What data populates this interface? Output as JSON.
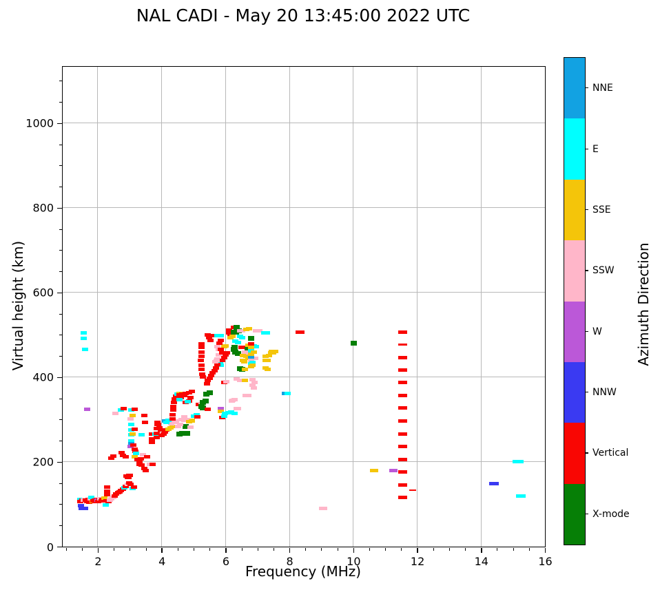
{
  "title": "NAL CADI - May 20 13:45:00 2022 UTC",
  "chart_data": {
    "type": "scatter",
    "title": "NAL CADI - May 20 13:45:00 2022 UTC",
    "xlabel": "Frequency (MHz)",
    "ylabel": "Virtual height (km)",
    "xlim": [
      0.9,
      16
    ],
    "ylim": [
      0,
      1133
    ],
    "x_ticks": [
      2,
      4,
      6,
      8,
      10,
      12,
      14,
      16
    ],
    "y_ticks": [
      0,
      200,
      400,
      600,
      800,
      1000
    ],
    "x_minor_step": 0.5,
    "y_minor_step": 50,
    "grid": true,
    "grid_color": "#b8b8b8",
    "colorbar": {
      "label": "Azimuth Direction",
      "categories": [
        {
          "name": "NNE",
          "color": "#12a2e2"
        },
        {
          "name": "E",
          "color": "#00ffff"
        },
        {
          "name": "SSE",
          "color": "#f4c50a"
        },
        {
          "name": "SSW",
          "color": "#ffb6c9"
        },
        {
          "name": "W",
          "color": "#bb58d8"
        },
        {
          "name": "NNW",
          "color": "#3a3af2"
        },
        {
          "name": "Vertical",
          "color": "#f90603"
        },
        {
          "name": "X-mode",
          "color": "#067f06"
        }
      ]
    },
    "point_note": "points are [freq_MHz, virtual_height_km, direction_index, optional_width_px, optional_height_px]; direction_index maps into colorbar.categories",
    "points": [
      [
        1.45,
        112,
        1
      ],
      [
        1.44,
        106,
        6
      ],
      [
        1.47,
        96,
        5
      ],
      [
        1.5,
        91,
        5
      ],
      [
        1.52,
        110,
        6
      ],
      [
        1.56,
        109,
        3
      ],
      [
        1.6,
        112,
        3
      ],
      [
        1.63,
        110,
        6
      ],
      [
        1.66,
        107,
        6
      ],
      [
        1.7,
        111,
        6
      ],
      [
        1.72,
        105,
        6
      ],
      [
        1.76,
        109,
        6
      ],
      [
        1.78,
        113,
        3
      ],
      [
        1.8,
        116,
        1
      ],
      [
        1.83,
        106,
        2
      ],
      [
        1.86,
        108,
        6
      ],
      [
        1.9,
        110,
        6
      ],
      [
        1.93,
        107,
        6
      ],
      [
        1.96,
        112,
        6
      ],
      [
        1.99,
        109,
        4
      ],
      [
        2.02,
        106,
        6
      ],
      [
        2.05,
        110,
        6
      ],
      [
        2.08,
        113,
        3
      ],
      [
        2.11,
        108,
        6
      ],
      [
        2.14,
        111,
        6
      ],
      [
        2.17,
        109,
        6
      ],
      [
        2.2,
        115,
        2
      ],
      [
        2.24,
        98,
        1
      ],
      [
        2.28,
        108,
        6
      ],
      [
        2.33,
        107,
        6
      ],
      [
        2.38,
        110,
        3
      ],
      [
        2.43,
        113,
        3
      ],
      [
        2.48,
        117,
        3
      ],
      [
        2.3,
        140,
        6
      ],
      [
        2.3,
        131,
        6
      ],
      [
        2.3,
        123,
        6
      ],
      [
        2.53,
        120,
        6
      ],
      [
        2.58,
        124,
        6
      ],
      [
        2.63,
        127,
        6
      ],
      [
        2.68,
        130,
        6
      ],
      [
        2.73,
        133,
        6
      ],
      [
        2.78,
        136,
        6
      ],
      [
        2.83,
        139,
        1
      ],
      [
        2.88,
        143,
        6
      ],
      [
        2.93,
        147,
        3
      ],
      [
        2.98,
        150,
        6
      ],
      [
        3.03,
        147,
        6
      ],
      [
        2.93,
        164,
        6
      ],
      [
        2.98,
        168,
        6
      ],
      [
        3.08,
        137,
        1
      ],
      [
        3.13,
        141,
        6
      ],
      [
        1.6,
        91,
        5
      ],
      [
        1.55,
        505,
        1
      ],
      [
        1.56,
        491,
        1
      ],
      [
        1.6,
        466,
        1
      ],
      [
        1.67,
        325,
        4
      ],
      [
        2.43,
        209,
        6
      ],
      [
        2.49,
        214,
        6
      ],
      [
        2.54,
        314,
        3
      ],
      [
        2.73,
        322,
        1
      ],
      [
        2.8,
        326,
        6
      ],
      [
        2.75,
        222,
        6
      ],
      [
        2.79,
        216,
        6
      ],
      [
        2.88,
        212,
        6
      ],
      [
        3.05,
        322,
        1
      ],
      [
        3.15,
        324,
        6
      ],
      [
        3.08,
        309,
        2
      ],
      [
        3.02,
        301,
        3
      ],
      [
        3.45,
        309,
        6
      ],
      [
        3.47,
        293,
        6
      ],
      [
        3.05,
        288,
        1
      ],
      [
        3.05,
        276,
        1
      ],
      [
        3.05,
        264,
        1
      ],
      [
        3.15,
        277,
        6
      ],
      [
        3.08,
        265,
        2
      ],
      [
        3.38,
        264,
        1
      ],
      [
        3.7,
        265,
        6
      ],
      [
        3.7,
        255,
        6
      ],
      [
        3.7,
        246,
        6
      ],
      [
        3.8,
        266,
        1
      ],
      [
        3.88,
        288,
        6
      ],
      [
        3.92,
        281,
        6
      ],
      [
        3.97,
        275,
        6
      ],
      [
        4.1,
        296,
        0
      ],
      [
        3.05,
        250,
        1
      ],
      [
        3.05,
        243,
        0
      ],
      [
        3.02,
        236,
        4
      ],
      [
        3.12,
        239,
        6
      ],
      [
        3.15,
        230,
        6
      ],
      [
        3.18,
        225,
        6
      ],
      [
        3.2,
        221,
        1
      ],
      [
        3.15,
        212,
        2
      ],
      [
        3.25,
        206,
        6
      ],
      [
        3.3,
        202,
        6
      ],
      [
        3.35,
        207,
        6
      ],
      [
        3.42,
        217,
        3
      ],
      [
        3.55,
        212,
        6
      ],
      [
        3.3,
        195,
        6
      ],
      [
        3.38,
        192,
        6
      ],
      [
        3.62,
        194,
        3
      ],
      [
        3.72,
        194,
        6
      ],
      [
        3.45,
        184,
        6
      ],
      [
        3.5,
        180,
        6
      ],
      [
        2.9,
        166,
        6
      ],
      [
        2.95,
        163,
        6
      ],
      [
        3.0,
        169,
        6
      ],
      [
        3.85,
        258,
        6
      ],
      [
        3.85,
        268,
        6
      ],
      [
        3.85,
        278,
        6
      ],
      [
        3.86,
        288,
        6
      ],
      [
        3.87,
        294,
        6
      ],
      [
        4.0,
        262,
        6
      ],
      [
        4.05,
        266,
        6
      ],
      [
        4.1,
        271,
        6
      ],
      [
        4.15,
        275,
        6
      ],
      [
        4.22,
        277,
        2
      ],
      [
        4.28,
        280,
        2
      ],
      [
        4.35,
        283,
        2
      ],
      [
        4.3,
        290,
        3
      ],
      [
        4.38,
        293,
        3
      ],
      [
        4.45,
        296,
        3
      ],
      [
        4.15,
        294,
        1
      ],
      [
        4.22,
        298,
        1
      ],
      [
        4.35,
        302,
        6
      ],
      [
        4.35,
        312,
        6
      ],
      [
        4.36,
        322,
        6
      ],
      [
        4.37,
        330,
        6
      ],
      [
        4.38,
        340,
        6
      ],
      [
        4.4,
        348,
        6
      ],
      [
        4.45,
        355,
        6
      ],
      [
        4.5,
        360,
        1
      ],
      [
        4.55,
        362,
        2
      ],
      [
        4.62,
        300,
        3
      ],
      [
        4.7,
        306,
        3
      ],
      [
        4.85,
        297,
        2
      ],
      [
        4.95,
        299,
        2
      ],
      [
        4.55,
        265,
        7
      ],
      [
        4.65,
        267,
        7
      ],
      [
        4.8,
        268,
        7
      ],
      [
        4.75,
        283,
        7
      ],
      [
        4.9,
        282,
        3
      ],
      [
        4.75,
        340,
        6
      ],
      [
        4.85,
        344,
        6
      ],
      [
        4.6,
        352,
        6
      ],
      [
        4.7,
        357,
        6
      ],
      [
        4.55,
        347,
        1
      ],
      [
        4.82,
        342,
        1
      ],
      [
        4.58,
        289,
        3
      ],
      [
        4.52,
        284,
        3
      ],
      [
        4.7,
        298,
        3
      ],
      [
        4.8,
        300,
        3
      ],
      [
        4.85,
        295,
        2
      ],
      [
        4.95,
        297,
        2
      ],
      [
        4.55,
        358,
        6
      ],
      [
        4.65,
        360,
        6
      ],
      [
        4.75,
        362,
        6
      ],
      [
        4.85,
        364,
        6
      ],
      [
        4.9,
        352,
        6
      ],
      [
        4.95,
        366,
        6
      ],
      [
        5.02,
        308,
        1
      ],
      [
        5.1,
        312,
        1
      ],
      [
        5.12,
        307,
        6
      ],
      [
        5.15,
        336,
        6
      ],
      [
        5.25,
        337,
        3
      ],
      [
        5.3,
        341,
        7
      ],
      [
        5.25,
        331,
        7
      ],
      [
        5.28,
        327,
        7
      ],
      [
        5.4,
        360,
        7
      ],
      [
        5.5,
        363,
        7
      ],
      [
        5.38,
        343,
        7
      ],
      [
        5.45,
        325,
        6
      ],
      [
        5.85,
        326,
        4
      ],
      [
        5.85,
        320,
        2
      ],
      [
        5.98,
        315,
        1
      ],
      [
        6.08,
        316,
        1
      ],
      [
        6.18,
        317,
        1
      ],
      [
        6.28,
        314,
        1
      ],
      [
        6.2,
        344,
        3
      ],
      [
        6.28,
        347,
        3
      ],
      [
        6.35,
        326,
        3
      ],
      [
        6.22,
        346,
        3
      ],
      [
        6.38,
        326,
        3
      ],
      [
        5.9,
        305,
        6
      ],
      [
        5.95,
        308,
        1
      ],
      [
        5.25,
        460,
        6
      ],
      [
        5.25,
        470,
        6
      ],
      [
        5.25,
        478,
        6
      ],
      [
        5.24,
        450,
        6
      ],
      [
        5.23,
        440,
        6
      ],
      [
        5.25,
        428,
        6
      ],
      [
        5.25,
        418,
        6
      ],
      [
        5.27,
        408,
        6
      ],
      [
        5.3,
        400,
        6
      ],
      [
        5.45,
        500,
        6
      ],
      [
        5.48,
        493,
        6
      ],
      [
        5.52,
        487,
        6
      ],
      [
        5.6,
        499,
        6
      ],
      [
        5.75,
        499,
        1
      ],
      [
        5.85,
        499,
        1
      ],
      [
        5.75,
        472,
        3
      ],
      [
        5.78,
        465,
        3
      ],
      [
        5.78,
        452,
        3
      ],
      [
        5.75,
        443,
        3
      ],
      [
        5.82,
        435,
        1
      ],
      [
        5.85,
        428,
        1
      ],
      [
        5.95,
        473,
        2
      ],
      [
        6.0,
        474,
        2
      ],
      [
        5.42,
        385,
        6
      ],
      [
        5.45,
        392,
        6
      ],
      [
        5.5,
        398,
        6
      ],
      [
        5.55,
        404,
        6
      ],
      [
        5.6,
        410,
        6
      ],
      [
        5.65,
        416,
        6
      ],
      [
        5.7,
        422,
        6
      ],
      [
        5.75,
        430,
        6
      ],
      [
        5.9,
        440,
        6
      ],
      [
        5.95,
        447,
        6
      ],
      [
        6.0,
        453,
        6
      ],
      [
        6.05,
        458,
        6
      ],
      [
        5.9,
        458,
        6
      ],
      [
        5.85,
        465,
        6
      ],
      [
        5.8,
        480,
        6
      ],
      [
        5.85,
        487,
        6
      ],
      [
        5.68,
        436,
        3
      ],
      [
        5.72,
        440,
        3
      ],
      [
        5.95,
        388,
        6
      ],
      [
        6.02,
        390,
        3
      ],
      [
        6.1,
        505,
        6
      ],
      [
        6.12,
        511,
        6
      ],
      [
        6.16,
        500,
        6
      ],
      [
        6.25,
        507,
        7
      ],
      [
        6.33,
        507,
        7
      ],
      [
        6.41,
        509,
        7
      ],
      [
        6.25,
        517,
        6
      ],
      [
        6.35,
        518,
        7
      ],
      [
        6.15,
        494,
        2
      ],
      [
        6.22,
        496,
        2
      ],
      [
        6.45,
        509,
        3
      ],
      [
        6.52,
        510,
        3
      ],
      [
        6.65,
        513,
        2
      ],
      [
        6.73,
        514,
        2
      ],
      [
        6.45,
        497,
        1
      ],
      [
        6.52,
        494,
        1
      ],
      [
        6.95,
        509,
        3
      ],
      [
        7.05,
        509,
        3
      ],
      [
        7.2,
        505,
        1
      ],
      [
        7.3,
        505,
        1
      ],
      [
        6.3,
        485,
        1
      ],
      [
        6.38,
        482,
        1
      ],
      [
        6.25,
        465,
        7
      ],
      [
        6.3,
        460,
        7
      ],
      [
        6.38,
        456,
        7
      ],
      [
        6.28,
        470,
        7
      ],
      [
        6.5,
        470,
        6
      ],
      [
        6.57,
        470,
        6
      ],
      [
        6.7,
        466,
        7
      ],
      [
        6.78,
        465,
        7
      ],
      [
        6.88,
        474,
        1
      ],
      [
        6.95,
        472,
        1
      ],
      [
        6.72,
        475,
        2
      ],
      [
        6.8,
        472,
        2
      ],
      [
        6.6,
        460,
        3
      ],
      [
        6.7,
        458,
        3
      ],
      [
        6.55,
        451,
        2
      ],
      [
        6.65,
        450,
        2
      ],
      [
        6.72,
        444,
        2
      ],
      [
        6.55,
        440,
        2
      ],
      [
        6.58,
        436,
        2
      ],
      [
        6.85,
        444,
        3
      ],
      [
        6.92,
        444,
        3
      ],
      [
        6.45,
        420,
        7
      ],
      [
        6.52,
        418,
        7
      ],
      [
        6.6,
        418,
        2
      ],
      [
        6.8,
        492,
        7
      ],
      [
        6.8,
        479,
        6
      ],
      [
        6.8,
        470,
        2
      ],
      [
        6.8,
        463,
        1
      ],
      [
        6.8,
        455,
        2
      ],
      [
        6.8,
        447,
        0
      ],
      [
        6.8,
        440,
        3
      ],
      [
        6.8,
        432,
        1
      ],
      [
        6.8,
        425,
        2
      ],
      [
        7.25,
        440,
        2
      ],
      [
        7.32,
        440,
        2
      ],
      [
        7.25,
        450,
        2
      ],
      [
        7.35,
        451,
        2
      ],
      [
        7.42,
        457,
        2
      ],
      [
        7.5,
        458,
        2
      ],
      [
        7.25,
        422,
        2
      ],
      [
        7.31,
        418,
        2
      ],
      [
        7.45,
        461,
        2
      ],
      [
        7.55,
        461,
        2
      ],
      [
        6.88,
        460,
        2
      ],
      [
        6.85,
        435,
        1
      ],
      [
        6.85,
        428,
        2
      ],
      [
        6.35,
        396,
        3
      ],
      [
        6.45,
        393,
        3
      ],
      [
        6.6,
        392,
        2
      ],
      [
        6.85,
        395,
        3
      ],
      [
        6.9,
        388,
        3
      ],
      [
        6.85,
        381,
        3
      ],
      [
        6.88,
        375,
        3
      ],
      [
        6.62,
        357,
        3
      ],
      [
        6.72,
        357,
        3
      ],
      [
        7.85,
        362,
        0
      ],
      [
        7.95,
        362,
        1
      ],
      [
        8.33,
        507,
        6,
        13
      ],
      [
        10.02,
        481,
        7
      ],
      [
        10.65,
        179,
        2,
        12
      ],
      [
        11.25,
        179,
        4,
        12
      ],
      [
        9.05,
        91,
        3,
        12
      ],
      [
        14.4,
        149,
        5,
        14
      ],
      [
        15.15,
        201,
        1,
        16
      ],
      [
        15.25,
        120,
        1,
        14
      ],
      [
        11.55,
        507,
        6,
        13
      ],
      [
        11.55,
        477,
        6,
        13,
        3
      ],
      [
        11.55,
        447,
        6,
        13
      ],
      [
        11.55,
        417,
        6,
        13
      ],
      [
        11.55,
        387,
        6,
        13
      ],
      [
        11.55,
        357,
        6,
        13
      ],
      [
        11.55,
        327,
        6,
        13
      ],
      [
        11.55,
        296,
        6,
        13
      ],
      [
        11.55,
        266,
        6,
        13
      ],
      [
        11.55,
        236,
        6,
        13
      ],
      [
        11.55,
        206,
        6,
        13
      ],
      [
        11.55,
        176,
        6,
        13
      ],
      [
        11.55,
        146,
        6,
        13
      ],
      [
        11.55,
        116,
        6,
        13
      ],
      [
        11.85,
        133,
        6,
        10,
        2
      ]
    ]
  }
}
